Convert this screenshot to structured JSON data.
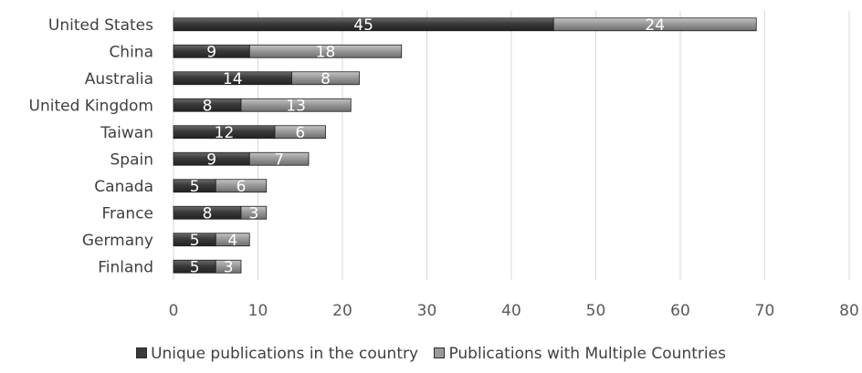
{
  "chart_data": {
    "type": "bar",
    "orientation": "horizontal",
    "stacked": true,
    "categories": [
      "United States",
      "China",
      "Australia",
      "United Kingdom",
      "Taiwan",
      "Spain",
      "Canada",
      "France",
      "Germany",
      "Finland"
    ],
    "series": [
      {
        "name": "Unique publications in the country",
        "values": [
          45,
          9,
          14,
          8,
          12,
          9,
          5,
          8,
          5,
          5
        ],
        "color": "#3a3a3a"
      },
      {
        "name": "Publications with Multiple Countries",
        "values": [
          24,
          18,
          8,
          13,
          6,
          7,
          6,
          3,
          4,
          3
        ],
        "color": "#9a9a9a"
      }
    ],
    "xlim": [
      0,
      80
    ],
    "xticks": [
      0,
      10,
      20,
      30,
      40,
      50,
      60,
      70,
      80
    ],
    "grid": "vertical",
    "legend_position": "bottom"
  }
}
